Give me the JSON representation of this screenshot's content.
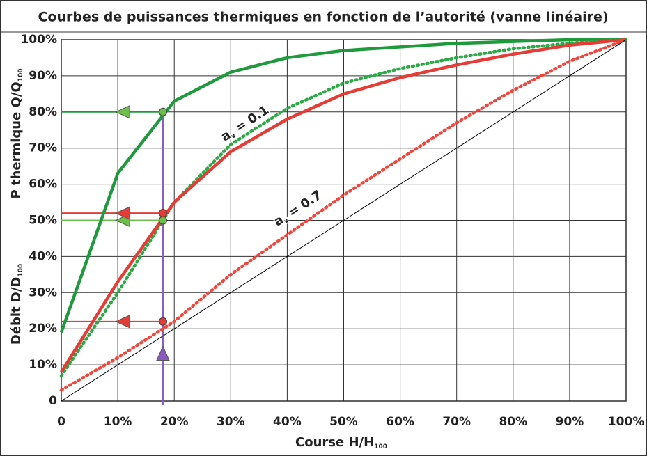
{
  "chart_data": {
    "type": "line",
    "title": "Courbes de puissances thermiques en fonction de l’autorité (vanne linéaire)",
    "x_label": {
      "text": "Course H/H",
      "sub": "100"
    },
    "y_labels": [
      {
        "text": "P thermique Q/Q",
        "sub": "100"
      },
      {
        "text": "Débit D/D",
        "sub": "100"
      }
    ],
    "x": [
      0,
      10,
      20,
      30,
      40,
      50,
      60,
      70,
      80,
      90,
      100
    ],
    "series": [
      {
        "color": "#1e9a3c",
        "dash": false,
        "values": [
          19,
          63,
          83,
          91,
          95,
          97,
          98,
          99,
          99.5,
          100,
          100
        ]
      },
      {
        "color": "#2aaa44",
        "dash": true,
        "values": [
          7,
          30,
          55,
          71,
          81,
          88,
          92,
          95,
          97.5,
          99,
          100
        ]
      },
      {
        "color": "#e53c36",
        "dash": false,
        "values": [
          8,
          33,
          55,
          69,
          78,
          85,
          89.5,
          93,
          96,
          98.5,
          100
        ]
      },
      {
        "color": "#f0463c",
        "dash": true,
        "values": [
          3,
          12,
          22,
          35,
          46,
          57,
          67,
          77,
          86,
          94,
          100
        ]
      },
      {
        "color": "#000000",
        "dash": false,
        "thin": true,
        "values": [
          0,
          10,
          20,
          30,
          40,
          50,
          60,
          70,
          80,
          90,
          100
        ]
      }
    ],
    "annotations": [
      {
        "text": "a",
        "sub": "v",
        "rest": " = 0.1"
      },
      {
        "text": "a",
        "sub": "v",
        "rest": " = 0.7"
      }
    ],
    "reading_x": 18,
    "arrow_x": 11,
    "reading_color": "#8a5cc0",
    "reading_arrow_y": 13,
    "readings": [
      {
        "y": 80,
        "color": "#1e9a3c",
        "fill": "#6cc04a"
      },
      {
        "y": 50,
        "color": "#6cc04a",
        "fill": "#6cc04a"
      },
      {
        "y": 52,
        "color": "#e53c36",
        "fill": "#e53c36"
      },
      {
        "y": 22,
        "color": "#e53c36",
        "fill": "#e53c36"
      }
    ],
    "xlim": [
      0,
      100
    ],
    "ylim": [
      0,
      100
    ],
    "xticks": [
      0,
      {
        "value": 10,
        "label": "10%"
      },
      {
        "value": 20,
        "label": "20%"
      },
      {
        "value": 30,
        "label": "30%"
      },
      {
        "value": 40,
        "label": "40%"
      },
      {
        "value": 50,
        "label": "50%"
      },
      {
        "value": 60,
        "label": "60%"
      },
      {
        "value": 70,
        "label": "70%"
      },
      {
        "value": 80,
        "label": "80%"
      },
      {
        "value": 90,
        "label": "90%"
      },
      {
        "value": 100,
        "label": "100%"
      }
    ],
    "yticks": [
      0,
      {
        "value": 10,
        "label": "10%"
      },
      {
        "value": 20,
        "label": "20%"
      },
      {
        "value": 30,
        "label": "30%"
      },
      {
        "value": 40,
        "label": "40%"
      },
      {
        "value": 50,
        "label": "50%"
      },
      {
        "value": 60,
        "label": "60%"
      },
      {
        "value": 70,
        "label": "70%"
      },
      {
        "value": 80,
        "label": "80%"
      },
      {
        "value": 90,
        "label": "90%"
      },
      {
        "value": 100,
        "label": "100%"
      }
    ],
    "grid": true
  }
}
